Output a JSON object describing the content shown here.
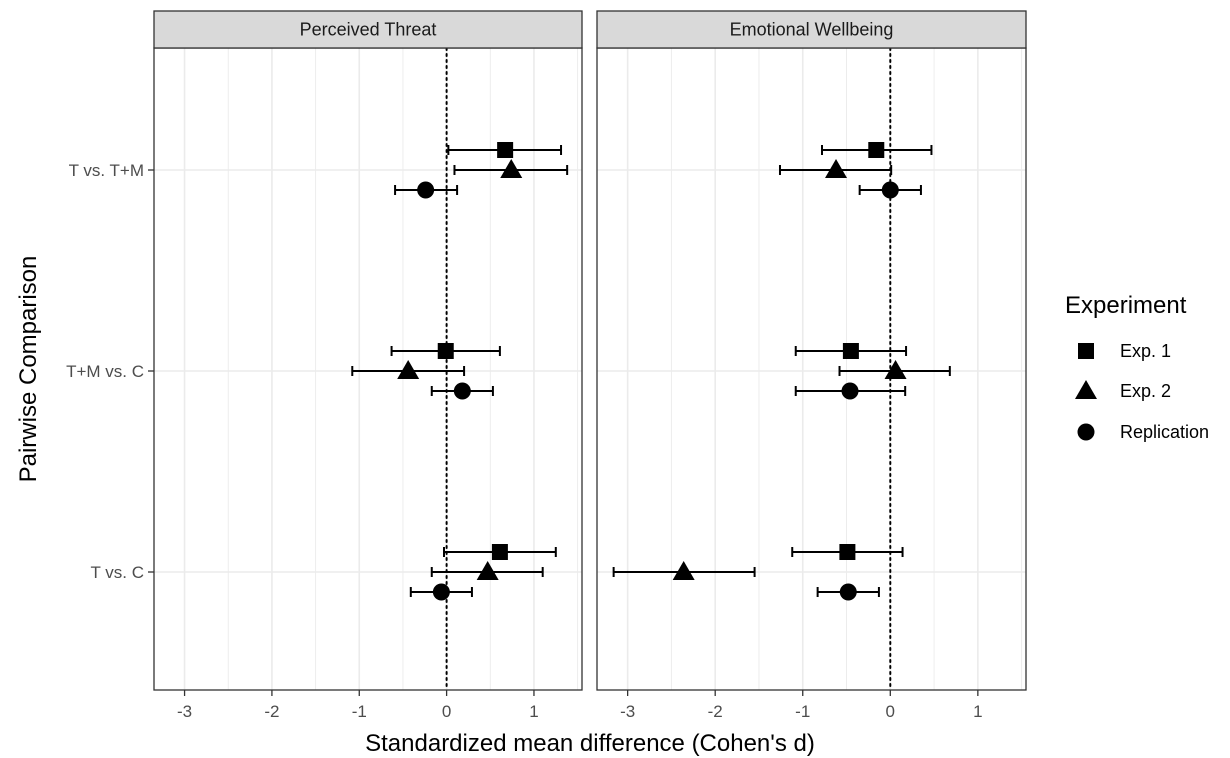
{
  "chart_data": {
    "type": "scatter",
    "subtype": "forest-plot-with-error-bars",
    "facets": [
      "Perceived Threat",
      "Emotional Wellbeing"
    ],
    "categories": [
      "T vs. T+M",
      "T+M vs. C",
      "T vs. C"
    ],
    "xlabel": "Standardized mean difference (Cohen's d)",
    "ylabel": "Pairwise Comparison",
    "xlim": [
      -3.35,
      1.55
    ],
    "xticks": [
      -3,
      -2,
      -1,
      0,
      1
    ],
    "xtick_labels": [
      "-3",
      "-2",
      "-1",
      "0",
      "1"
    ],
    "reference_line_x": 0,
    "grid": true,
    "legend": {
      "title": "Experiment",
      "position": "right",
      "entries": [
        "Exp. 1",
        "Exp. 2",
        "Replication"
      ]
    },
    "series": [
      {
        "name": "Exp. 1",
        "shape": "square",
        "points": [
          {
            "facet": "Perceived Threat",
            "comparison": "T vs. T+M",
            "d": 0.67,
            "lo": 0.02,
            "hi": 1.31
          },
          {
            "facet": "Perceived Threat",
            "comparison": "T+M vs. C",
            "d": -0.01,
            "lo": -0.63,
            "hi": 0.61
          },
          {
            "facet": "Perceived Threat",
            "comparison": "T vs. C",
            "d": 0.61,
            "lo": -0.03,
            "hi": 1.25
          },
          {
            "facet": "Emotional Wellbeing",
            "comparison": "T vs. T+M",
            "d": -0.16,
            "lo": -0.78,
            "hi": 0.47
          },
          {
            "facet": "Emotional Wellbeing",
            "comparison": "T+M vs. C",
            "d": -0.45,
            "lo": -1.08,
            "hi": 0.18
          },
          {
            "facet": "Emotional Wellbeing",
            "comparison": "T vs. C",
            "d": -0.49,
            "lo": -1.12,
            "hi": 0.14
          }
        ]
      },
      {
        "name": "Exp. 2",
        "shape": "triangle",
        "points": [
          {
            "facet": "Perceived Threat",
            "comparison": "T vs. T+M",
            "d": 0.74,
            "lo": 0.09,
            "hi": 1.38
          },
          {
            "facet": "Perceived Threat",
            "comparison": "T+M vs. C",
            "d": -0.44,
            "lo": -1.08,
            "hi": 0.2
          },
          {
            "facet": "Perceived Threat",
            "comparison": "T vs. C",
            "d": 0.47,
            "lo": -0.17,
            "hi": 1.1
          },
          {
            "facet": "Emotional Wellbeing",
            "comparison": "T vs. T+M",
            "d": -0.62,
            "lo": -1.26,
            "hi": 0.01
          },
          {
            "facet": "Emotional Wellbeing",
            "comparison": "T+M vs. C",
            "d": 0.06,
            "lo": -0.58,
            "hi": 0.68
          },
          {
            "facet": "Emotional Wellbeing",
            "comparison": "T vs. C",
            "d": -2.36,
            "lo": -3.16,
            "hi": -1.55
          }
        ]
      },
      {
        "name": "Replication",
        "shape": "circle",
        "points": [
          {
            "facet": "Perceived Threat",
            "comparison": "T vs. T+M",
            "d": -0.24,
            "lo": -0.59,
            "hi": 0.12
          },
          {
            "facet": "Perceived Threat",
            "comparison": "T+M vs. C",
            "d": 0.18,
            "lo": -0.17,
            "hi": 0.53
          },
          {
            "facet": "Perceived Threat",
            "comparison": "T vs. C",
            "d": -0.06,
            "lo": -0.41,
            "hi": 0.29
          },
          {
            "facet": "Emotional Wellbeing",
            "comparison": "T vs. T+M",
            "d": 0.0,
            "lo": -0.35,
            "hi": 0.35
          },
          {
            "facet": "Emotional Wellbeing",
            "comparison": "T+M vs. C",
            "d": -0.46,
            "lo": -1.08,
            "hi": 0.17
          },
          {
            "facet": "Emotional Wellbeing",
            "comparison": "T vs. C",
            "d": -0.48,
            "lo": -0.83,
            "hi": -0.13
          }
        ]
      }
    ],
    "colors": {
      "marker": "#000000",
      "grid": "#ebebeb",
      "strip_fill": "#d9d9d9",
      "panel_border": "#333333"
    }
  }
}
